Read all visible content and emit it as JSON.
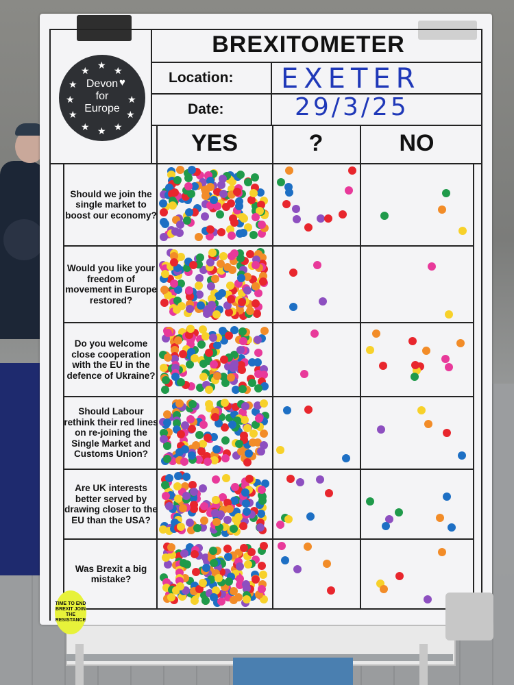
{
  "sheet": {
    "title": "BREXITOMETER",
    "location_label": "Location:",
    "location_value": "EXETER",
    "date_label": "Date:",
    "date_value": "29/3/25",
    "logo": {
      "line1": "Devon",
      "line2": "for",
      "line3": "Europe",
      "heart": "♥"
    },
    "columns": {
      "yes": "YES",
      "unsure": "?",
      "no": "NO"
    }
  },
  "questions": [
    {
      "text": "Should we join the single market to boost our economy?",
      "counts": {
        "yes": 150,
        "unsure": 13,
        "no": 4
      }
    },
    {
      "text": "Would you like your freedom of movement in Europe restored?",
      "counts": {
        "yes": 160,
        "unsure": 4,
        "no": 2
      }
    },
    {
      "text": "Do you welcome close cooperation with the EU in the defence of Ukraine?",
      "counts": {
        "yes": 150,
        "unsure": 2,
        "no": 12
      }
    },
    {
      "text": "Should Labour rethink their red lines on re-joining the Single Market and Customs Union?",
      "counts": {
        "yes": 145,
        "unsure": 4,
        "no": 5
      }
    },
    {
      "text": "Are UK interests better served by drawing closer to the EU than the USA?",
      "counts": {
        "yes": 150,
        "unsure": 8,
        "no": 7
      }
    },
    {
      "text": "Was Brexit a big mistake?",
      "counts": {
        "yes": 160,
        "unsure": 6,
        "no": 5
      }
    }
  ],
  "badge": {
    "text": "TIME TO END BREXIT JOIN THE RESISTANCE"
  },
  "dot_colors": [
    "#e8262d",
    "#f7d12a",
    "#1f9a4a",
    "#1d6fc4",
    "#8d4fc0",
    "#f28c28",
    "#e8399a"
  ]
}
